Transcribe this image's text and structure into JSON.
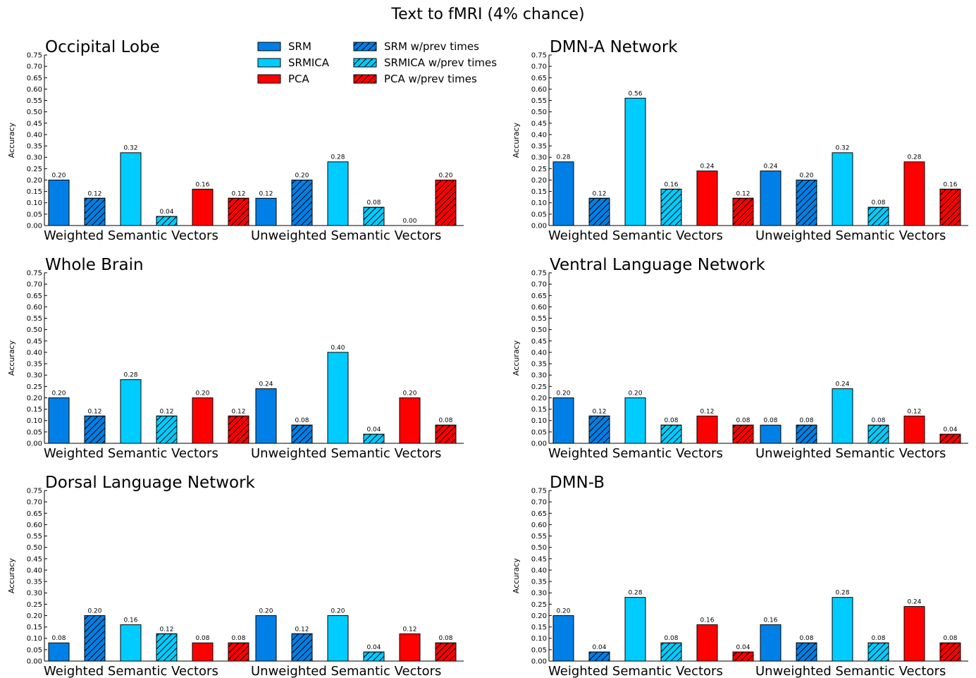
{
  "figure": {
    "title": "Text to fMRI (4% chance)"
  },
  "style": {
    "series_colors": [
      "#0080e6",
      "#0080e6",
      "#00ccff",
      "#00ccff",
      "#ff0000",
      "#ff0000"
    ],
    "series_hatched": [
      false,
      true,
      false,
      true,
      false,
      true
    ]
  },
  "legend": {
    "entries": [
      "SRM",
      "SRMICA",
      "PCA",
      "SRM w/prev times",
      "SRMICA w/prev times",
      "PCA w/prev times"
    ]
  },
  "chart_data": [
    {
      "type": "bar",
      "title": "Occipital Lobe",
      "ylabel": "Accuracy",
      "ylim": [
        0,
        0.75
      ],
      "yticks": [
        "0.00",
        "0.05",
        "0.10",
        "0.15",
        "0.20",
        "0.25",
        "0.30",
        "0.35",
        "0.40",
        "0.45",
        "0.50",
        "0.55",
        "0.60",
        "0.65",
        "0.70",
        "0.75"
      ],
      "groups": [
        "Weighted Semantic Vectors",
        "Unweighted Semantic Vectors"
      ],
      "series": [
        {
          "name": "SRM",
          "values": [
            0.2,
            0.12
          ]
        },
        {
          "name": "SRM w/prev times",
          "values": [
            0.12,
            0.2
          ]
        },
        {
          "name": "SRMICA",
          "values": [
            0.32,
            0.28
          ]
        },
        {
          "name": "SRMICA w/prev times",
          "values": [
            0.04,
            0.08
          ]
        },
        {
          "name": "PCA",
          "values": [
            0.16,
            0.0
          ]
        },
        {
          "name": "PCA w/prev times",
          "values": [
            0.12,
            0.2
          ]
        }
      ]
    },
    {
      "type": "bar",
      "title": "DMN-A Network",
      "ylabel": "Accuracy",
      "ylim": [
        0,
        0.75
      ],
      "yticks": [
        "0.00",
        "0.05",
        "0.10",
        "0.15",
        "0.20",
        "0.25",
        "0.30",
        "0.35",
        "0.40",
        "0.45",
        "0.50",
        "0.55",
        "0.60",
        "0.65",
        "0.70",
        "0.75"
      ],
      "groups": [
        "Weighted Semantic Vectors",
        "Unweighted Semantic Vectors"
      ],
      "series": [
        {
          "name": "SRM",
          "values": [
            0.28,
            0.24
          ]
        },
        {
          "name": "SRM w/prev times",
          "values": [
            0.12,
            0.2
          ]
        },
        {
          "name": "SRMICA",
          "values": [
            0.56,
            0.32
          ]
        },
        {
          "name": "SRMICA w/prev times",
          "values": [
            0.16,
            0.08
          ]
        },
        {
          "name": "PCA",
          "values": [
            0.24,
            0.28
          ]
        },
        {
          "name": "PCA w/prev times",
          "values": [
            0.12,
            0.16
          ]
        }
      ]
    },
    {
      "type": "bar",
      "title": "Whole Brain",
      "ylabel": "Accuracy",
      "ylim": [
        0,
        0.75
      ],
      "yticks": [
        "0.00",
        "0.05",
        "0.10",
        "0.15",
        "0.20",
        "0.25",
        "0.30",
        "0.35",
        "0.40",
        "0.45",
        "0.50",
        "0.55",
        "0.60",
        "0.65",
        "0.70",
        "0.75"
      ],
      "groups": [
        "Weighted Semantic Vectors",
        "Unweighted Semantic Vectors"
      ],
      "series": [
        {
          "name": "SRM",
          "values": [
            0.2,
            0.24
          ]
        },
        {
          "name": "SRM w/prev times",
          "values": [
            0.12,
            0.08
          ]
        },
        {
          "name": "SRMICA",
          "values": [
            0.28,
            0.4
          ]
        },
        {
          "name": "SRMICA w/prev times",
          "values": [
            0.12,
            0.04
          ]
        },
        {
          "name": "PCA",
          "values": [
            0.2,
            0.2
          ]
        },
        {
          "name": "PCA w/prev times",
          "values": [
            0.12,
            0.08
          ]
        }
      ]
    },
    {
      "type": "bar",
      "title": "Ventral Language Network",
      "ylabel": "Accuracy",
      "ylim": [
        0,
        0.75
      ],
      "yticks": [
        "0.00",
        "0.05",
        "0.10",
        "0.15",
        "0.20",
        "0.25",
        "0.30",
        "0.35",
        "0.40",
        "0.45",
        "0.50",
        "0.55",
        "0.60",
        "0.65",
        "0.70",
        "0.75"
      ],
      "groups": [
        "Weighted Semantic Vectors",
        "Unweighted Semantic Vectors"
      ],
      "series": [
        {
          "name": "SRM",
          "values": [
            0.2,
            0.08
          ]
        },
        {
          "name": "SRM w/prev times",
          "values": [
            0.12,
            0.08
          ]
        },
        {
          "name": "SRMICA",
          "values": [
            0.2,
            0.24
          ]
        },
        {
          "name": "SRMICA w/prev times",
          "values": [
            0.08,
            0.08
          ]
        },
        {
          "name": "PCA",
          "values": [
            0.12,
            0.12
          ]
        },
        {
          "name": "PCA w/prev times",
          "values": [
            0.08,
            0.04
          ]
        }
      ]
    },
    {
      "type": "bar",
      "title": "Dorsal Language Network",
      "ylabel": "Accuracy",
      "ylim": [
        0,
        0.75
      ],
      "yticks": [
        "0.00",
        "0.05",
        "0.10",
        "0.15",
        "0.20",
        "0.25",
        "0.30",
        "0.35",
        "0.40",
        "0.45",
        "0.50",
        "0.55",
        "0.60",
        "0.65",
        "0.70",
        "0.75"
      ],
      "groups": [
        "Weighted Semantic Vectors",
        "Unweighted Semantic Vectors"
      ],
      "series": [
        {
          "name": "SRM",
          "values": [
            0.08,
            0.2
          ]
        },
        {
          "name": "SRM w/prev times",
          "values": [
            0.2,
            0.12
          ]
        },
        {
          "name": "SRMICA",
          "values": [
            0.16,
            0.2
          ]
        },
        {
          "name": "SRMICA w/prev times",
          "values": [
            0.12,
            0.04
          ]
        },
        {
          "name": "PCA",
          "values": [
            0.08,
            0.12
          ]
        },
        {
          "name": "PCA w/prev times",
          "values": [
            0.08,
            0.08
          ]
        }
      ]
    },
    {
      "type": "bar",
      "title": "DMN-B",
      "ylabel": "Accuracy",
      "ylim": [
        0,
        0.75
      ],
      "yticks": [
        "0.00",
        "0.05",
        "0.10",
        "0.15",
        "0.20",
        "0.25",
        "0.30",
        "0.35",
        "0.40",
        "0.45",
        "0.50",
        "0.55",
        "0.60",
        "0.65",
        "0.70",
        "0.75"
      ],
      "groups": [
        "Weighted Semantic Vectors",
        "Unweighted Semantic Vectors"
      ],
      "series": [
        {
          "name": "SRM",
          "values": [
            0.2,
            0.16
          ]
        },
        {
          "name": "SRM w/prev times",
          "values": [
            0.04,
            0.08
          ]
        },
        {
          "name": "SRMICA",
          "values": [
            0.28,
            0.28
          ]
        },
        {
          "name": "SRMICA w/prev times",
          "values": [
            0.08,
            0.08
          ]
        },
        {
          "name": "PCA",
          "values": [
            0.16,
            0.24
          ]
        },
        {
          "name": "PCA w/prev times",
          "values": [
            0.04,
            0.08
          ]
        }
      ]
    }
  ]
}
